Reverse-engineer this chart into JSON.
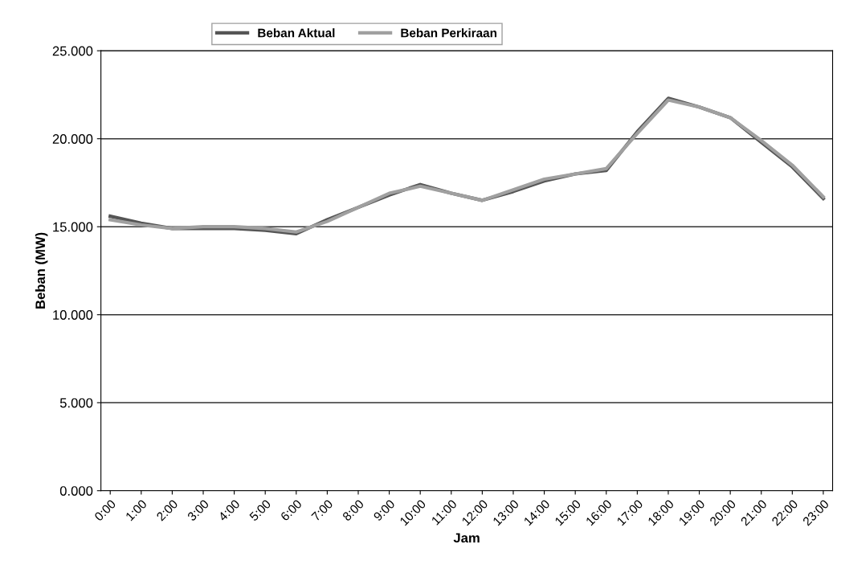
{
  "chart_data": {
    "type": "line",
    "xlabel": "Jam",
    "ylabel": "Beban (MW)",
    "categories": [
      "0:00",
      "1:00",
      "2:00",
      "3:00",
      "4:00",
      "5:00",
      "6:00",
      "7:00",
      "8:00",
      "9:00",
      "10:00",
      "11:00",
      "12:00",
      "13:00",
      "14:00",
      "15:00",
      "16:00",
      "17:00",
      "18:00",
      "19:00",
      "20:00",
      "21:00",
      "22:00",
      "23:00"
    ],
    "series": [
      {
        "name": "Beban Aktual",
        "color": "#555555",
        "values": [
          15.6,
          15.2,
          14.9,
          14.9,
          14.9,
          14.8,
          14.6,
          15.4,
          16.1,
          16.8,
          17.4,
          16.9,
          16.5,
          17.0,
          17.6,
          18.0,
          18.2,
          20.4,
          22.3,
          21.8,
          21.2,
          19.8,
          18.4,
          16.6
        ]
      },
      {
        "name": "Beban Perkiraan",
        "color": "#a0a0a0",
        "values": [
          15.4,
          15.1,
          14.9,
          15.0,
          15.0,
          14.9,
          14.7,
          15.3,
          16.1,
          16.9,
          17.3,
          16.9,
          16.5,
          17.1,
          17.7,
          18.0,
          18.3,
          20.3,
          22.2,
          21.8,
          21.2,
          19.9,
          18.5,
          16.7
        ]
      }
    ],
    "ylim": [
      0,
      25
    ],
    "yticks": [
      {
        "value": 0,
        "label": "0.000"
      },
      {
        "value": 5,
        "label": "5.000"
      },
      {
        "value": 10,
        "label": "10.000"
      },
      {
        "value": 15,
        "label": "15.000"
      },
      {
        "value": 20,
        "label": "20.000"
      },
      {
        "value": 25,
        "label": "25.000"
      }
    ],
    "grid": "y",
    "legend": "top",
    "marker": "none",
    "line_style": "solid"
  }
}
